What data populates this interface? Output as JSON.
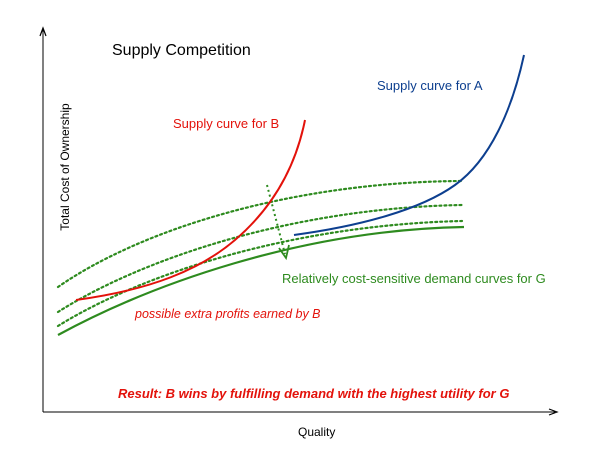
{
  "title": "Supply Competition",
  "axes": {
    "x_label": "Quality",
    "y_label": "Total Cost of Ownership"
  },
  "labels": {
    "supply_a": "Supply curve for A",
    "supply_b": "Supply curve for B",
    "demand_g": "Relatively cost-sensitive demand curves for G",
    "extra_profits": "possible extra profits earned by B",
    "result": "Result: B wins by fulfilling demand with the highest utility for G"
  },
  "colors": {
    "supply_a": "#0d3f8f",
    "supply_b": "#e3120b",
    "demand_g": "#2e8b1f",
    "annotation_red": "#e3120b",
    "axis": "#000000"
  }
}
